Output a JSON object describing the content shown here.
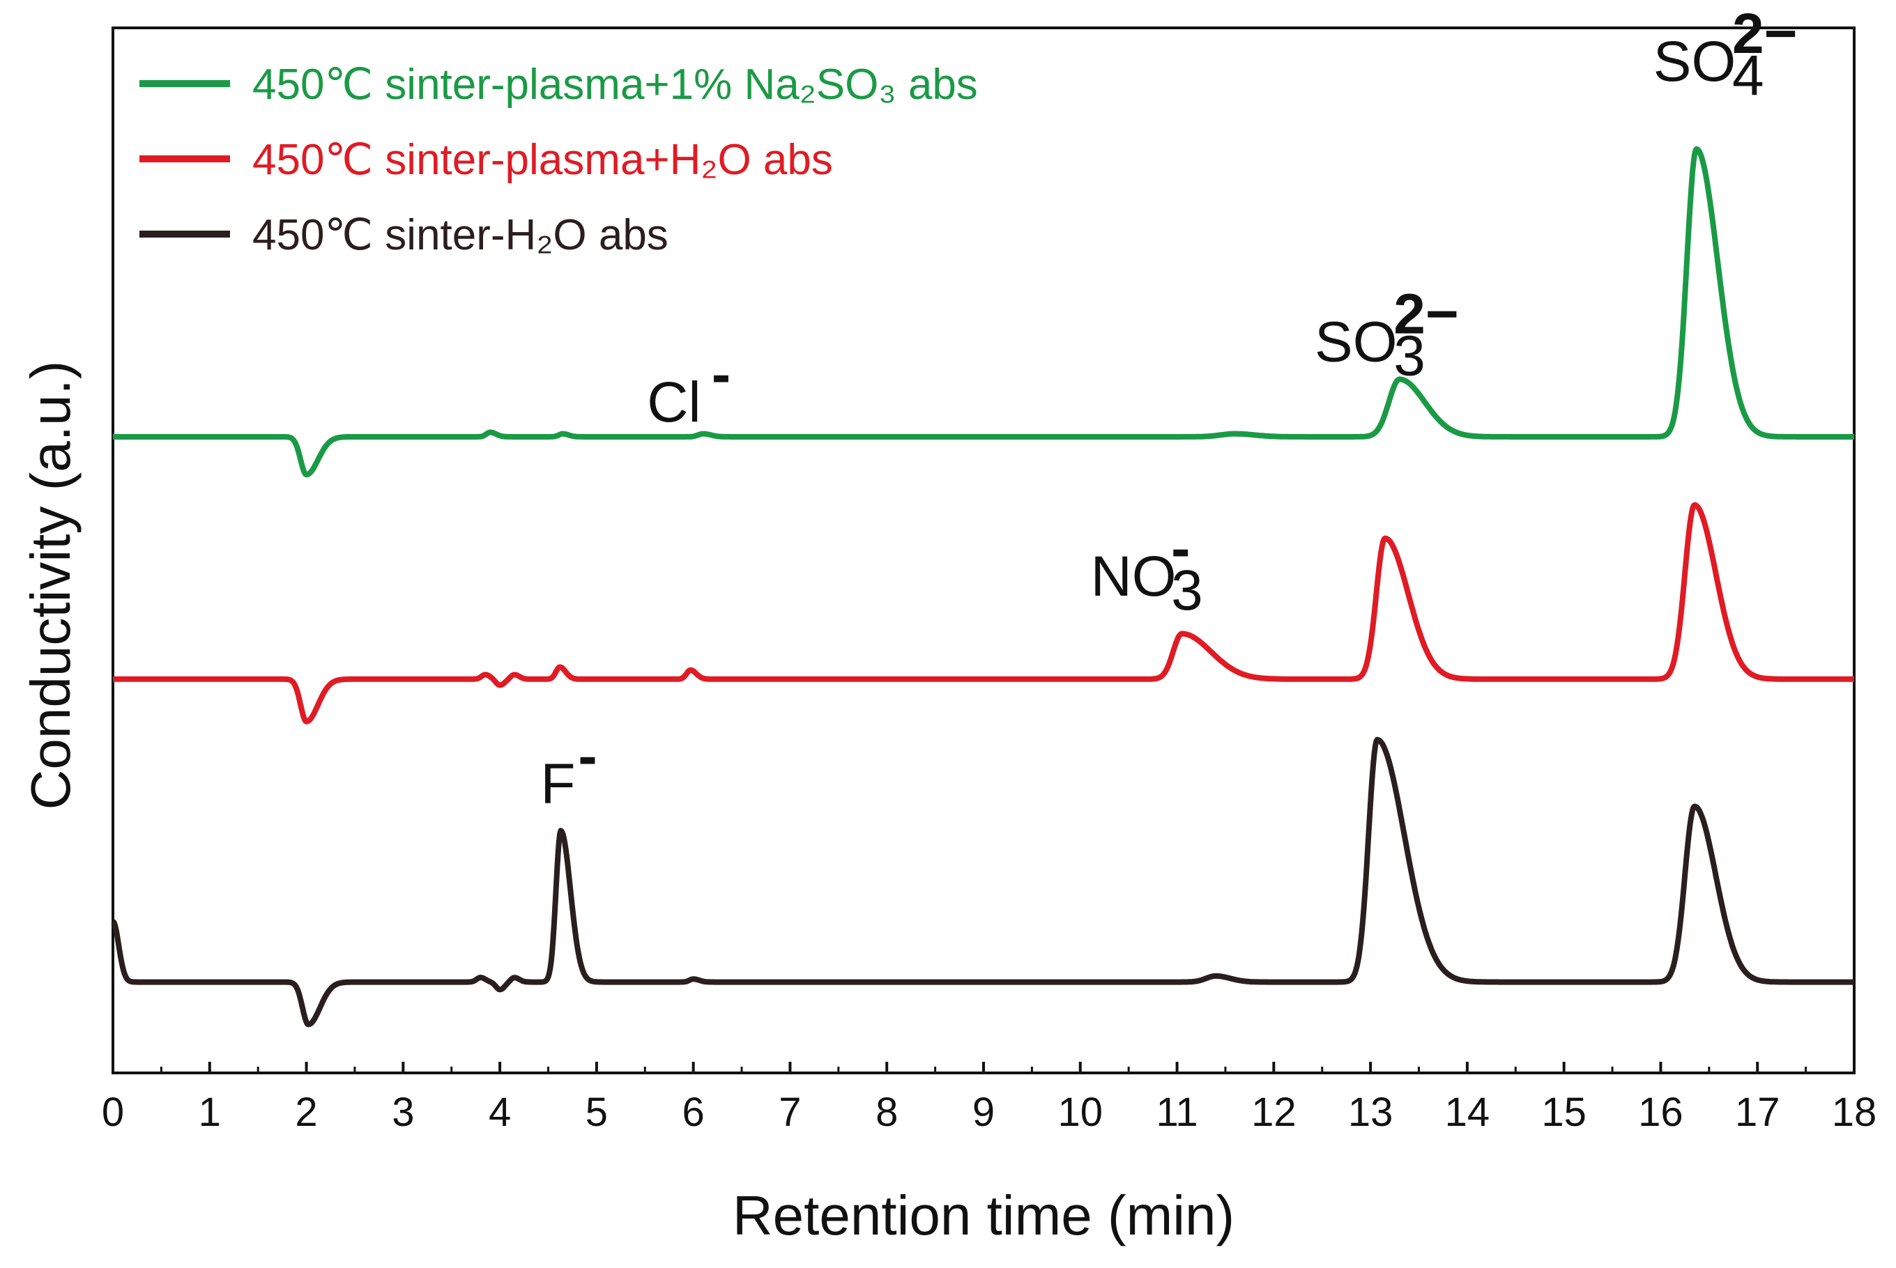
{
  "chart_data": {
    "type": "line",
    "title": "",
    "xlabel": "Retention time (min)",
    "ylabel": "Conductivity (a.u.)",
    "xlim": [
      0,
      18
    ],
    "ylim": [
      -0.6,
      6.3
    ],
    "x_ticks": [
      0,
      1,
      2,
      3,
      4,
      5,
      6,
      7,
      8,
      9,
      10,
      11,
      12,
      13,
      14,
      15,
      16,
      17,
      18
    ],
    "x_tick_labels": [
      "0",
      "1",
      "2",
      "3",
      "4",
      "5",
      "6",
      "7",
      "8",
      "9",
      "10",
      "11",
      "12",
      "13",
      "14",
      "15",
      "16",
      "17",
      "18"
    ],
    "grid": false,
    "legend_position": "top-left",
    "series": [
      {
        "name": "450℃ sinter-plasma+1% Na2SO3 abs",
        "color": "#1a9a45",
        "baseline": 3.6,
        "peaks": [
          {
            "x": 2.0,
            "h": -0.25,
            "wl": 0.06,
            "wr": 0.12
          },
          {
            "x": 3.9,
            "h": 0.03,
            "wl": 0.04,
            "wr": 0.06
          },
          {
            "x": 4.65,
            "h": 0.02,
            "wl": 0.04,
            "wr": 0.06
          },
          {
            "x": 6.1,
            "h": 0.02,
            "wl": 0.05,
            "wr": 0.08
          },
          {
            "x": 11.6,
            "h": 0.02,
            "wl": 0.15,
            "wr": 0.2
          },
          {
            "x": 13.3,
            "h": 0.38,
            "wl": 0.11,
            "wr": 0.26
          },
          {
            "x": 16.37,
            "h": 1.9,
            "wl": 0.1,
            "wr": 0.22
          }
        ]
      },
      {
        "name": "450℃ sinter-plasma+H2O abs",
        "color": "#e01b24",
        "baseline": 2.0,
        "peaks": [
          {
            "x": 2.0,
            "h": -0.28,
            "wl": 0.06,
            "wr": 0.12
          },
          {
            "x": 3.85,
            "h": 0.03,
            "wl": 0.04,
            "wr": 0.05
          },
          {
            "x": 4.0,
            "h": -0.04,
            "wl": 0.04,
            "wr": 0.05
          },
          {
            "x": 4.15,
            "h": 0.03,
            "wl": 0.04,
            "wr": 0.05
          },
          {
            "x": 4.62,
            "h": 0.08,
            "wl": 0.04,
            "wr": 0.06
          },
          {
            "x": 5.97,
            "h": 0.06,
            "wl": 0.04,
            "wr": 0.06
          },
          {
            "x": 11.05,
            "h": 0.3,
            "wl": 0.09,
            "wr": 0.3
          },
          {
            "x": 13.15,
            "h": 0.93,
            "wl": 0.09,
            "wr": 0.24
          },
          {
            "x": 16.35,
            "h": 1.15,
            "wl": 0.1,
            "wr": 0.22
          }
        ]
      },
      {
        "name": "450℃ sinter-H2O abs",
        "color": "#2b1e1e",
        "baseline": 0.0,
        "peaks": [
          {
            "x": 0.0,
            "h": 0.4,
            "wl": 0.02,
            "wr": 0.06
          },
          {
            "x": 2.02,
            "h": -0.28,
            "wl": 0.06,
            "wr": 0.12
          },
          {
            "x": 3.8,
            "h": 0.03,
            "wl": 0.04,
            "wr": 0.05
          },
          {
            "x": 4.0,
            "h": -0.05,
            "wl": 0.04,
            "wr": 0.05
          },
          {
            "x": 4.15,
            "h": 0.03,
            "wl": 0.04,
            "wr": 0.05
          },
          {
            "x": 4.63,
            "h": 1.0,
            "wl": 0.05,
            "wr": 0.1
          },
          {
            "x": 6.0,
            "h": 0.02,
            "wl": 0.04,
            "wr": 0.06
          },
          {
            "x": 11.4,
            "h": 0.04,
            "wl": 0.1,
            "wr": 0.15
          },
          {
            "x": 13.07,
            "h": 1.6,
            "wl": 0.09,
            "wr": 0.28
          },
          {
            "x": 16.35,
            "h": 1.16,
            "wl": 0.1,
            "wr": 0.22
          }
        ]
      }
    ],
    "legend": [
      {
        "text": "450℃ sinter-plasma+1% Na₂SO₃ abs",
        "color": "#1a9a45"
      },
      {
        "text": "450℃ sinter-plasma+H₂O abs",
        "color": "#e01b24"
      },
      {
        "text": "450℃ sinter-H₂O abs",
        "color": "#2b1e1e"
      }
    ],
    "annotations": [
      {
        "base": "SO",
        "sub": "4",
        "sup": "2−",
        "x": 16.35,
        "y": 5.95
      },
      {
        "base": "SO",
        "sub": "3",
        "sup": "2−",
        "x": 12.85,
        "y": 4.1
      },
      {
        "base": "Cl",
        "sub": "",
        "sup": "-",
        "x": 5.8,
        "y": 3.7
      },
      {
        "base": "NO",
        "sub": "3",
        "sup": "-",
        "x": 10.55,
        "y": 2.55
      },
      {
        "base": "F",
        "sub": "",
        "sup": "-",
        "x": 4.6,
        "y": 1.18
      }
    ]
  }
}
